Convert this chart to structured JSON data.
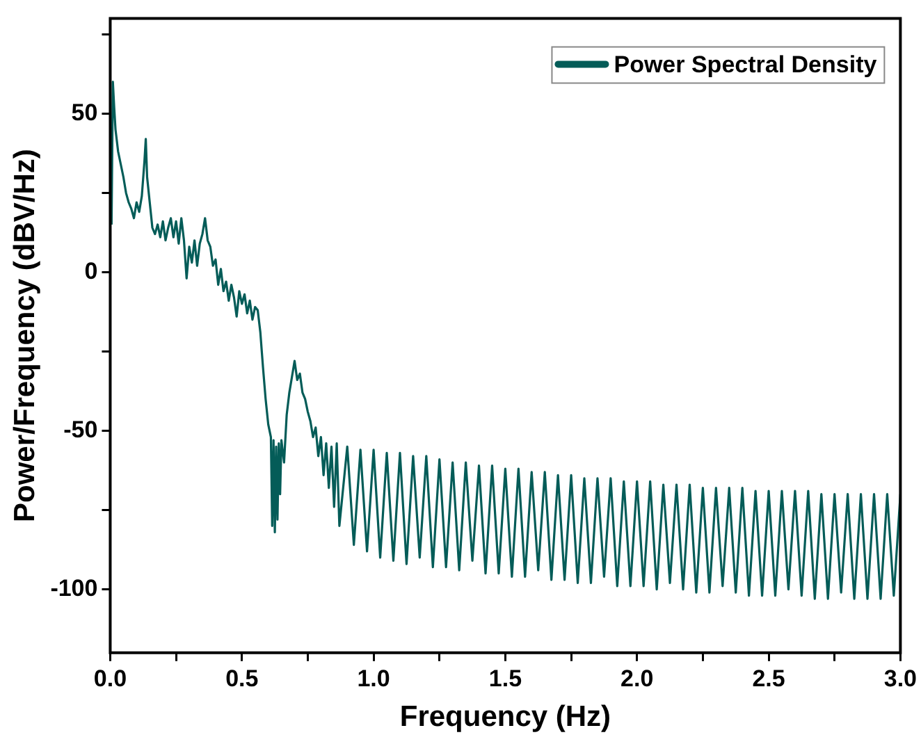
{
  "chart_data": {
    "type": "line",
    "xlabel": "Frequency (Hz)",
    "ylabel": "Power/Frequency (dBV/Hz)",
    "xlim": [
      0,
      3
    ],
    "ylim": [
      -120,
      80
    ],
    "xticks": [
      {
        "value": 0,
        "label": "0.0"
      },
      {
        "value": 0.25,
        "label": null
      },
      0.5,
      {
        "value": 0.75,
        "label": null
      },
      {
        "value": 1,
        "label": "1.0"
      },
      {
        "value": 1.25,
        "label": null
      },
      1.5,
      {
        "value": 1.75,
        "label": null
      },
      {
        "value": 2,
        "label": "2.0"
      },
      {
        "value": 2.25,
        "label": null
      },
      2.5,
      {
        "value": 2.75,
        "label": null
      },
      {
        "value": 3,
        "label": "3.0"
      }
    ],
    "yticks": [
      -100,
      {
        "value": -75,
        "label": null
      },
      -50,
      {
        "value": -25,
        "label": null
      },
      0,
      {
        "value": 25,
        "label": null
      },
      50,
      {
        "value": 75,
        "label": null
      }
    ],
    "legend": "top right",
    "grid": false,
    "marker": "none",
    "line_style": "solid",
    "series": [
      {
        "name": "Power Spectral Density",
        "color": "#045c58",
        "x": [
          0.005,
          0.01,
          0.015,
          0.02,
          0.03,
          0.04,
          0.05,
          0.06,
          0.07,
          0.08,
          0.09,
          0.1,
          0.11,
          0.12,
          0.13,
          0.135,
          0.14,
          0.15,
          0.16,
          0.17,
          0.18,
          0.19,
          0.2,
          0.21,
          0.22,
          0.23,
          0.24,
          0.25,
          0.26,
          0.27,
          0.28,
          0.29,
          0.3,
          0.31,
          0.32,
          0.33,
          0.34,
          0.35,
          0.36,
          0.37,
          0.38,
          0.39,
          0.4,
          0.41,
          0.42,
          0.43,
          0.44,
          0.45,
          0.46,
          0.47,
          0.48,
          0.49,
          0.5,
          0.51,
          0.52,
          0.53,
          0.54,
          0.55,
          0.56,
          0.57,
          0.58,
          0.59,
          0.6,
          0.61,
          0.615,
          0.62,
          0.625,
          0.63,
          0.635,
          0.64,
          0.645,
          0.65,
          0.66,
          0.67,
          0.68,
          0.69,
          0.7,
          0.71,
          0.72,
          0.73,
          0.74,
          0.75,
          0.76,
          0.77,
          0.78,
          0.79,
          0.8,
          0.81,
          0.82,
          0.83,
          0.84,
          0.85,
          0.86,
          0.87,
          0.9,
          0.925,
          0.95,
          0.975,
          1,
          1.025,
          1.05,
          1.075,
          1.1,
          1.125,
          1.15,
          1.175,
          1.2,
          1.225,
          1.25,
          1.275,
          1.3,
          1.325,
          1.35,
          1.375,
          1.4,
          1.425,
          1.45,
          1.475,
          1.5,
          1.525,
          1.55,
          1.575,
          1.6,
          1.625,
          1.65,
          1.675,
          1.7,
          1.725,
          1.75,
          1.775,
          1.8,
          1.825,
          1.85,
          1.875,
          1.9,
          1.925,
          1.95,
          1.975,
          2,
          2.025,
          2.05,
          2.075,
          2.1,
          2.125,
          2.15,
          2.175,
          2.2,
          2.225,
          2.25,
          2.275,
          2.3,
          2.325,
          2.35,
          2.375,
          2.4,
          2.425,
          2.45,
          2.475,
          2.5,
          2.525,
          2.55,
          2.575,
          2.6,
          2.625,
          2.65,
          2.675,
          2.7,
          2.725,
          2.75,
          2.775,
          2.8,
          2.825,
          2.85,
          2.875,
          2.9,
          2.925,
          2.95,
          2.975,
          3
        ],
        "values": [
          15,
          60,
          52,
          45,
          38,
          34,
          30,
          25,
          22,
          20,
          17,
          22,
          19,
          24,
          35,
          42,
          30,
          22,
          14,
          12,
          15,
          11,
          16,
          10,
          14,
          17,
          11,
          16,
          9,
          17,
          10,
          -2,
          8,
          3,
          10,
          2,
          9,
          12,
          17,
          10,
          8,
          2,
          4,
          -4,
          1,
          -6,
          -3,
          -9,
          -4,
          -8,
          -14,
          -6,
          -10,
          -7,
          -13,
          -9,
          -15,
          -11,
          -12,
          -19,
          -30,
          -40,
          -48,
          -52,
          -80,
          -53,
          -82,
          -55,
          -78,
          -54,
          -70,
          -53,
          -60,
          -45,
          -38,
          -33,
          -28,
          -34,
          -32,
          -38,
          -40,
          -44,
          -47,
          -52,
          -49,
          -58,
          -52,
          -64,
          -54,
          -68,
          -55,
          -74,
          -54,
          -80,
          -55,
          -86,
          -56,
          -88,
          -56,
          -90,
          -57,
          -91,
          -57,
          -92,
          -58,
          -90,
          -58,
          -93,
          -59,
          -93,
          -60,
          -94,
          -60,
          -91,
          -61,
          -95,
          -61,
          -95,
          -62,
          -96,
          -62,
          -96,
          -63,
          -94,
          -63,
          -97,
          -64,
          -97,
          -64,
          -98,
          -65,
          -98,
          -65,
          -96,
          -65,
          -99,
          -66,
          -99,
          -66,
          -99,
          -66,
          -100,
          -67,
          -98,
          -67,
          -100,
          -67,
          -101,
          -68,
          -101,
          -68,
          -99,
          -68,
          -101,
          -68,
          -102,
          -69,
          -102,
          -69,
          -102,
          -69,
          -100,
          -69,
          -102,
          -69,
          -103,
          -70,
          -103,
          -70,
          -101,
          -70,
          -103,
          -70,
          -103,
          -70,
          -103,
          -70,
          -102,
          -70
        ]
      }
    ]
  }
}
